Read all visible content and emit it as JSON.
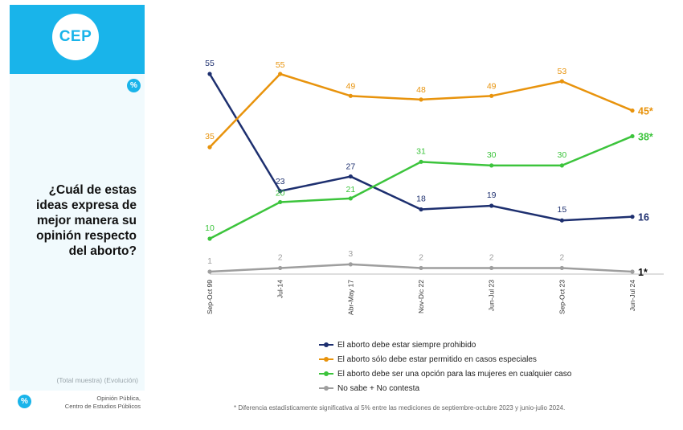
{
  "brand": {
    "logo_text": "CEP",
    "percent_glyph": "%"
  },
  "sidebar": {
    "question_lines": [
      "¿Cuál de estas",
      "ideas expresa de",
      "mejor manera su",
      "opinión respecto",
      "del aborto?"
    ],
    "sample_note": "(Total muestra) (Evolución)",
    "source_lines": [
      "Opinión Pública,",
      "Centro de Estudios Públicos"
    ]
  },
  "footnote": "* Diferencia estadísticamente significativa al 5% entre las mediciones de septiembre-octubre 2023 y junio-julio 2024.",
  "chart_data": {
    "type": "line",
    "x": [
      "Sep-Oct 99",
      "Jul-14",
      "Abr-May 17",
      "Nov-Dic 22",
      "Jun-Jul 23",
      "Sep-Oct 23",
      "Jun-Jul 24"
    ],
    "series": [
      {
        "name": "El aborto debe estar siempre prohibido",
        "color": "#1d2f6f",
        "values": [
          55,
          23,
          27,
          18,
          19,
          15,
          16
        ],
        "labels": [
          "55",
          "23",
          "27",
          "18",
          "19",
          "15",
          "16"
        ]
      },
      {
        "name": "El aborto sólo debe estar permitido en casos especiales",
        "color": "#e8930c",
        "values": [
          35,
          55,
          49,
          48,
          49,
          53,
          45
        ],
        "labels": [
          "35",
          "55",
          "49",
          "48",
          "49",
          "53",
          "45*"
        ]
      },
      {
        "name": "El aborto debe ser una opción para las mujeres en cualquier caso",
        "color": "#3cc43c",
        "values": [
          10,
          20,
          21,
          31,
          30,
          30,
          38
        ],
        "labels": [
          "10",
          "20",
          "21",
          "31",
          "30",
          "30",
          "38*"
        ]
      },
      {
        "name": "No sabe + No contesta",
        "color": "#9e9e9e",
        "values": [
          1,
          2,
          3,
          2,
          2,
          2,
          1
        ],
        "labels": [
          "1",
          "2",
          "3",
          "2",
          "2",
          "2",
          "1*"
        ]
      }
    ],
    "ylim": [
      1,
      55
    ],
    "grid": false,
    "legend_position": "bottom"
  }
}
